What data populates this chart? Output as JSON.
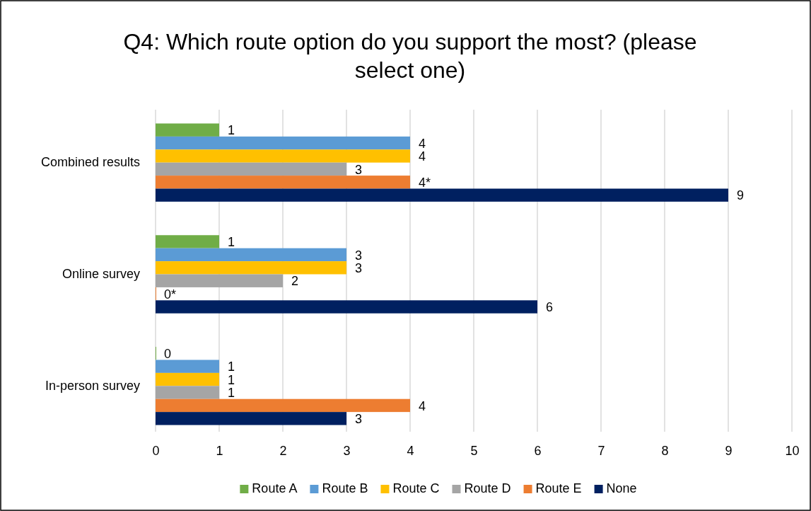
{
  "chart_data": {
    "type": "bar",
    "orientation": "horizontal",
    "title": "Q4: Which route option do you support the most? (please select one)",
    "categories": [
      "Combined results",
      "Online survey",
      "In-person survey"
    ],
    "series": [
      {
        "name": "Route A",
        "color": "#70ad47",
        "values": [
          1,
          1,
          0
        ],
        "value_labels": [
          "1",
          "1",
          "0"
        ]
      },
      {
        "name": "Route B",
        "color": "#5b9bd5",
        "values": [
          4,
          3,
          1
        ],
        "value_labels": [
          "4",
          "3",
          "1"
        ]
      },
      {
        "name": "Route C",
        "color": "#ffc000",
        "values": [
          4,
          3,
          1
        ],
        "value_labels": [
          "4",
          "3",
          "1"
        ]
      },
      {
        "name": "Route D",
        "color": "#a5a5a5",
        "values": [
          3,
          2,
          1
        ],
        "value_labels": [
          "3",
          "2",
          "1"
        ]
      },
      {
        "name": "Route E",
        "color": "#ed7d31",
        "values": [
          4,
          0,
          4
        ],
        "value_labels": [
          "4*",
          "0*",
          "4"
        ]
      },
      {
        "name": "None",
        "color": "#002060",
        "values": [
          9,
          6,
          3
        ],
        "value_labels": [
          "9",
          "6",
          "3"
        ]
      }
    ],
    "xlim": [
      0,
      10
    ],
    "xticks": [
      0,
      1,
      2,
      3,
      4,
      5,
      6,
      7,
      8,
      9,
      10
    ],
    "grid": "x",
    "legend": "bottom"
  }
}
